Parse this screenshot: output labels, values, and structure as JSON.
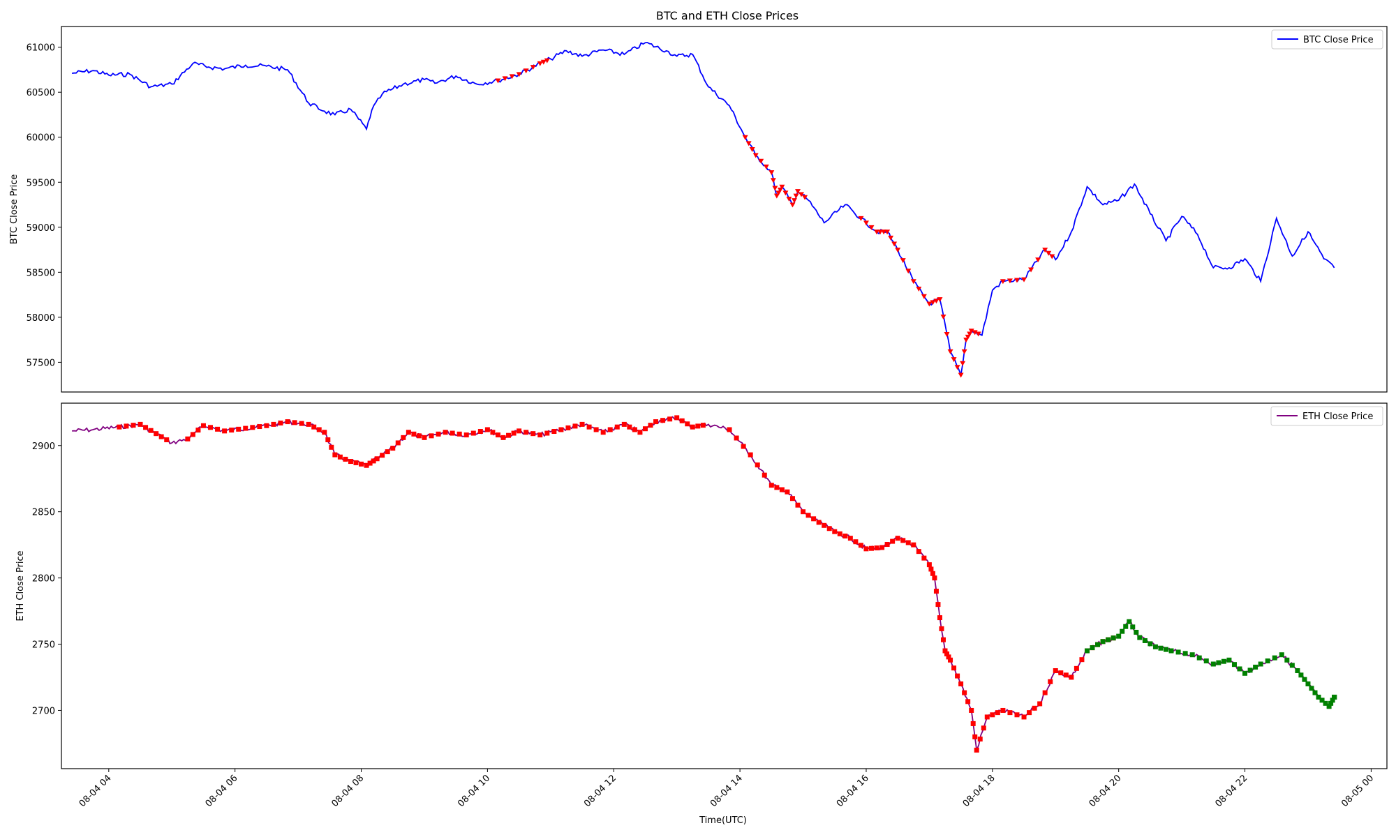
{
  "figure": {
    "title": "BTC and ETH Close Prices",
    "xlabel": "Time(UTC)"
  },
  "colors": {
    "btc": "#0000ff",
    "eth": "#800080",
    "marker_sell": "#ff0000",
    "marker_buy": "#008000"
  },
  "chart_data": [
    {
      "type": "line",
      "title": "BTC and ETH Close Prices",
      "xlabel": "",
      "ylabel": "BTC Close Price",
      "ylim": [
        57170,
        61230
      ],
      "yticks": [
        57500,
        58000,
        58500,
        59000,
        59500,
        60000,
        60500,
        61000
      ],
      "xlim": [
        "08-04 03:15",
        "08-05 00:15"
      ],
      "legend_position": "top-right",
      "grid": false,
      "series": [
        {
          "name": "BTC Close Price",
          "x": [
            "08-04 03:25",
            "08-04 03:45",
            "08-04 04:00",
            "08-04 04:20",
            "08-04 04:40",
            "08-04 05:00",
            "08-04 05:20",
            "08-04 05:35",
            "08-04 05:50",
            "08-04 06:10",
            "08-04 06:30",
            "08-04 06:50",
            "08-04 07:10",
            "08-04 07:25",
            "08-04 07:35",
            "08-04 07:50",
            "08-04 08:05",
            "08-04 08:10",
            "08-04 08:20",
            "08-04 08:40",
            "08-04 09:00",
            "08-04 09:10",
            "08-04 09:30",
            "08-04 09:50",
            "08-04 10:10",
            "08-04 10:30",
            "08-04 10:50",
            "08-04 11:00",
            "08-04 11:15",
            "08-04 11:30",
            "08-04 11:50",
            "08-04 12:10",
            "08-04 12:30",
            "08-04 12:50",
            "08-04 13:00",
            "08-04 13:15",
            "08-04 13:30",
            "08-04 13:50",
            "08-04 14:05",
            "08-04 14:15",
            "08-04 14:30",
            "08-04 14:35",
            "08-04 14:40",
            "08-04 14:50",
            "08-04 14:55",
            "08-04 15:05",
            "08-04 15:20",
            "08-04 15:40",
            "08-04 15:55",
            "08-04 16:10",
            "08-04 16:20",
            "08-04 16:30",
            "08-04 16:45",
            "08-04 17:00",
            "08-04 17:10",
            "08-04 17:20",
            "08-04 17:30",
            "08-04 17:35",
            "08-04 17:40",
            "08-04 17:50",
            "08-04 18:00",
            "08-04 18:10",
            "08-04 18:30",
            "08-04 18:50",
            "08-04 19:00",
            "08-04 19:15",
            "08-04 19:30",
            "08-04 19:45",
            "08-04 20:00",
            "08-04 20:15",
            "08-04 20:30",
            "08-04 20:45",
            "08-04 21:00",
            "08-04 21:15",
            "08-04 21:30",
            "08-04 21:45",
            "08-04 22:00",
            "08-04 22:15",
            "08-04 22:30",
            "08-04 22:45",
            "08-04 23:00",
            "08-04 23:15",
            "08-04 23:25"
          ],
          "y": [
            60710,
            60740,
            60690,
            60700,
            60560,
            60590,
            60820,
            60780,
            60760,
            60800,
            60790,
            60750,
            60380,
            60290,
            60250,
            60310,
            60090,
            60300,
            60480,
            60590,
            60640,
            60600,
            60680,
            60590,
            60630,
            60700,
            60820,
            60870,
            60960,
            60900,
            60970,
            60920,
            61050,
            60960,
            60900,
            60920,
            60560,
            60350,
            60000,
            59800,
            59610,
            59350,
            59450,
            59250,
            59400,
            59300,
            59050,
            59250,
            59100,
            58950,
            58950,
            58750,
            58400,
            58150,
            58200,
            57620,
            57360,
            57750,
            57850,
            57800,
            58300,
            58400,
            58420,
            58750,
            58640,
            58950,
            59450,
            59250,
            59300,
            59480,
            59150,
            58850,
            59120,
            58920,
            58550,
            58550,
            58650,
            58400,
            59100,
            58680,
            58950,
            58650,
            58550
          ]
        }
      ]
    },
    {
      "type": "line",
      "xlabel": "Time(UTC)",
      "ylabel": "ETH Close Price",
      "ylim": [
        2656,
        2932
      ],
      "yticks": [
        2700,
        2750,
        2800,
        2850,
        2900
      ],
      "xlim": [
        "08-04 03:15",
        "08-05 00:15"
      ],
      "xticks": [
        "08-04 04",
        "08-04 06",
        "08-04 08",
        "08-04 10",
        "08-04 12",
        "08-04 14",
        "08-04 16",
        "08-04 18",
        "08-04 20",
        "08-04 22",
        "08-05 00"
      ],
      "legend_position": "top-right",
      "grid": false,
      "series": [
        {
          "name": "ETH Close Price",
          "x": [
            "08-04 03:25",
            "08-04 03:45",
            "08-04 04:10",
            "08-04 04:30",
            "08-04 04:45",
            "08-04 05:00",
            "08-04 05:15",
            "08-04 05:30",
            "08-04 05:50",
            "08-04 06:10",
            "08-04 06:30",
            "08-04 06:50",
            "08-04 07:10",
            "08-04 07:25",
            "08-04 07:35",
            "08-04 07:50",
            "08-04 08:05",
            "08-04 08:15",
            "08-04 08:30",
            "08-04 08:45",
            "08-04 09:00",
            "08-04 09:20",
            "08-04 09:40",
            "08-04 10:00",
            "08-04 10:15",
            "08-04 10:30",
            "08-04 10:50",
            "08-04 11:10",
            "08-04 11:30",
            "08-04 11:50",
            "08-04 12:10",
            "08-04 12:25",
            "08-04 12:40",
            "08-04 13:00",
            "08-04 13:15",
            "08-04 13:30",
            "08-04 13:50",
            "08-04 14:10",
            "08-04 14:30",
            "08-04 14:45",
            "08-04 15:00",
            "08-04 15:15",
            "08-04 15:30",
            "08-04 15:45",
            "08-04 16:00",
            "08-04 16:15",
            "08-04 16:30",
            "08-04 16:45",
            "08-04 17:00",
            "08-04 17:05",
            "08-04 17:10",
            "08-04 17:15",
            "08-04 17:20",
            "08-04 17:30",
            "08-04 17:40",
            "08-04 17:45",
            "08-04 17:55",
            "08-04 18:10",
            "08-04 18:30",
            "08-04 18:45",
            "08-04 19:00",
            "08-04 19:15",
            "08-04 19:30",
            "08-04 19:45",
            "08-04 20:00",
            "08-04 20:10",
            "08-04 20:20",
            "08-04 20:35",
            "08-04 20:50",
            "08-04 21:10",
            "08-04 21:30",
            "08-04 21:45",
            "08-04 22:00",
            "08-04 22:15",
            "08-04 22:35",
            "08-04 22:50",
            "08-04 23:00",
            "08-04 23:10",
            "08-04 23:20",
            "08-04 23:25"
          ],
          "y": [
            2911,
            2912,
            2914,
            2916,
            2909,
            2902,
            2905,
            2915,
            2911,
            2913,
            2915,
            2918,
            2916,
            2910,
            2893,
            2888,
            2885,
            2890,
            2898,
            2910,
            2906,
            2910,
            2908,
            2912,
            2906,
            2911,
            2908,
            2912,
            2916,
            2910,
            2916,
            2910,
            2918,
            2921,
            2914,
            2916,
            2912,
            2893,
            2870,
            2865,
            2850,
            2842,
            2835,
            2830,
            2822,
            2823,
            2830,
            2825,
            2810,
            2800,
            2770,
            2745,
            2738,
            2720,
            2700,
            2670,
            2695,
            2700,
            2695,
            2705,
            2730,
            2725,
            2745,
            2752,
            2756,
            2767,
            2755,
            2748,
            2745,
            2742,
            2735,
            2738,
            2728,
            2735,
            2742,
            2730,
            2720,
            2710,
            2703,
            2710
          ]
        }
      ]
    }
  ]
}
